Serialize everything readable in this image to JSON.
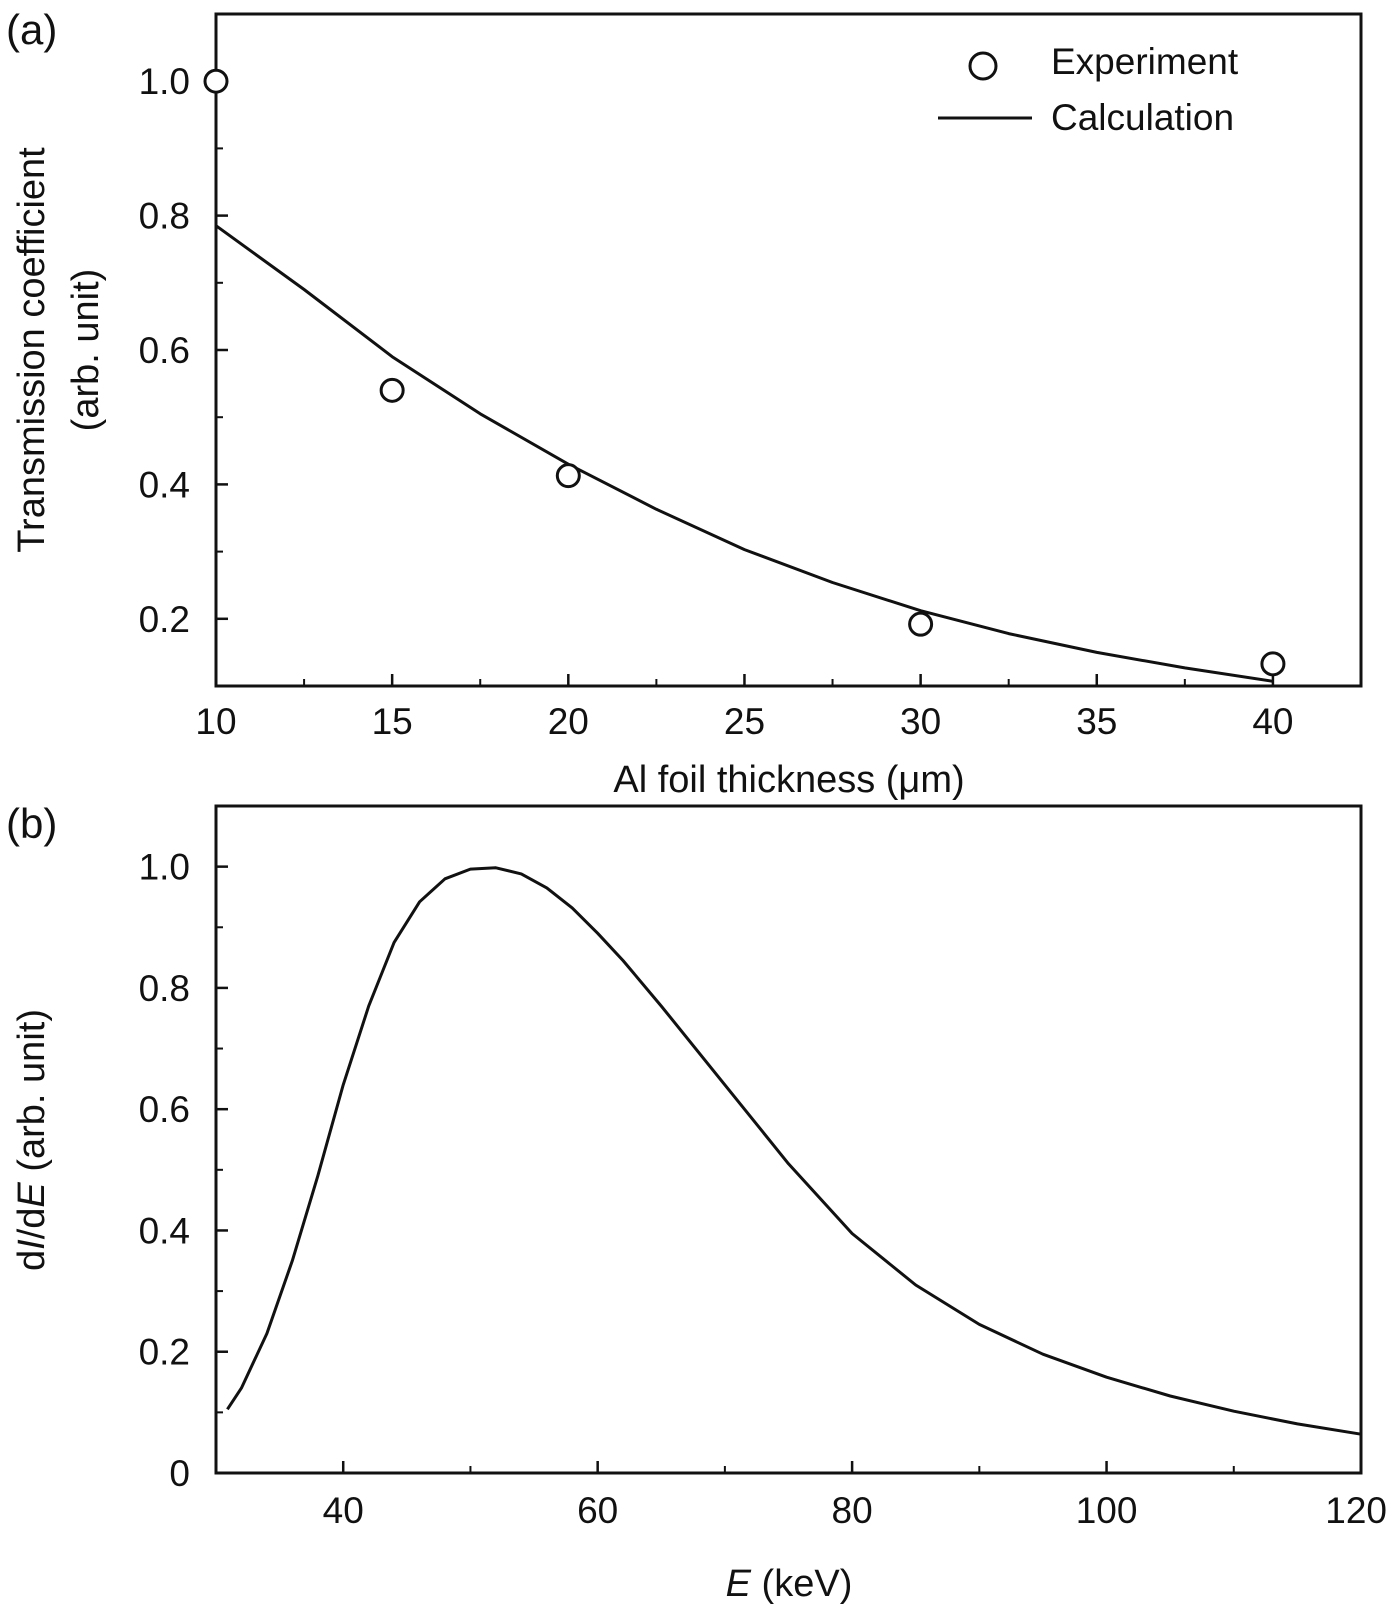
{
  "colors": {
    "ink": "#111111",
    "background": "#ffffff"
  },
  "chart_data": [
    {
      "panel_label": "(a)",
      "type": "scatter",
      "xlabel": "Al foil thickness (μm)",
      "ylabel_line1": "Transmission coefficient",
      "ylabel_line2": "(arb. unit)",
      "xlim": [
        10,
        42.5
      ],
      "ylim": [
        0.1,
        1.1
      ],
      "x_ticks": [
        10,
        15,
        20,
        25,
        30,
        35,
        40
      ],
      "x_tick_labels": [
        "10",
        "15",
        "20",
        "25",
        "30",
        "35",
        "40"
      ],
      "y_ticks": [
        0.2,
        0.4,
        0.6,
        0.8,
        1.0
      ],
      "y_tick_labels": [
        "0.2",
        "0.4",
        "0.6",
        "0.8",
        "1.0"
      ],
      "legend": {
        "position": "top-right",
        "entries": [
          "Experiment",
          "Calculation"
        ]
      },
      "grid": false,
      "series": [
        {
          "name": "Experiment",
          "type": "scatter",
          "marker": "open-circle",
          "x": [
            10,
            15,
            20,
            30,
            40
          ],
          "y": [
            1.0,
            0.54,
            0.413,
            0.192,
            0.133
          ]
        },
        {
          "name": "Calculation",
          "type": "line",
          "x": [
            10,
            12.5,
            15,
            17.5,
            20,
            22.5,
            25,
            27.5,
            30,
            32.5,
            35,
            37.5,
            40
          ],
          "y": [
            0.785,
            0.69,
            0.59,
            0.505,
            0.43,
            0.363,
            0.303,
            0.254,
            0.212,
            0.178,
            0.15,
            0.127,
            0.107
          ]
        }
      ]
    },
    {
      "panel_label": "(b)",
      "type": "line",
      "xlabel_var": "E",
      "xlabel_unit": " (keV)",
      "ylabel_prefix": "d",
      "ylabel_var1": "I",
      "ylabel_mid": "/d",
      "ylabel_var2": "E",
      "ylabel_suffix": " (arb. unit)",
      "xlim": [
        30,
        120
      ],
      "ylim": [
        0,
        1.1
      ],
      "x_ticks": [
        40,
        60,
        80,
        100,
        120
      ],
      "x_tick_labels": [
        "40",
        "60",
        "80",
        "100",
        "120"
      ],
      "x_minor_ticks": [
        50,
        70,
        90,
        110
      ],
      "y_ticks": [
        0,
        0.2,
        0.4,
        0.6,
        0.8,
        1.0
      ],
      "y_tick_labels": [
        "0",
        "0.2",
        "0.4",
        "0.6",
        "0.8",
        "1.0"
      ],
      "y_minor_ticks": [
        0.1,
        0.3,
        0.5,
        0.7,
        0.9
      ],
      "grid": false,
      "series": [
        {
          "type": "line",
          "x": [
            30.9,
            32,
            34,
            36,
            38,
            40,
            42,
            44,
            46,
            48,
            50,
            52,
            54,
            56,
            58,
            60,
            62,
            65,
            70,
            75,
            80,
            85,
            90,
            95,
            100,
            105,
            110,
            115,
            120
          ],
          "y": [
            0.105,
            0.14,
            0.23,
            0.35,
            0.49,
            0.64,
            0.77,
            0.875,
            0.942,
            0.98,
            0.996,
            0.998,
            0.988,
            0.965,
            0.932,
            0.89,
            0.845,
            0.77,
            0.64,
            0.51,
            0.395,
            0.31,
            0.245,
            0.196,
            0.158,
            0.127,
            0.102,
            0.081,
            0.064
          ]
        }
      ]
    }
  ]
}
